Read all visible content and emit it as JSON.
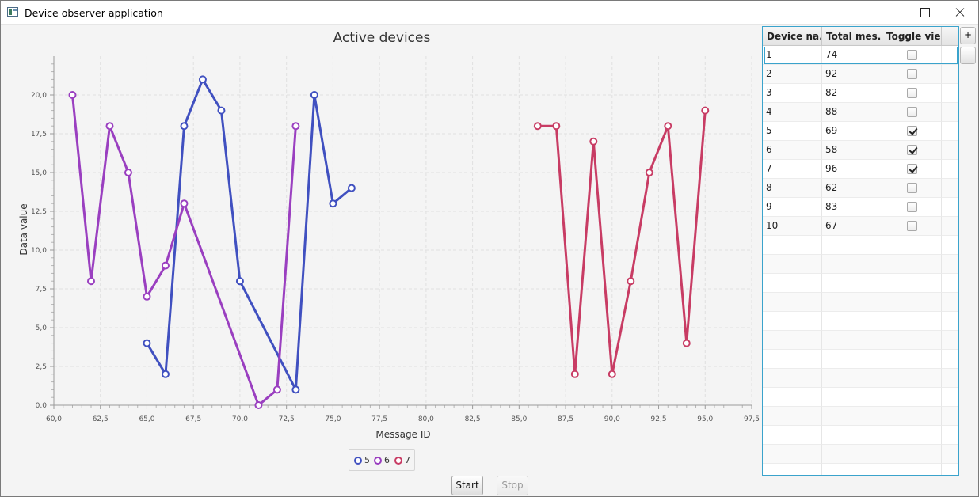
{
  "window": {
    "title": "Device observer application"
  },
  "chart_data": {
    "type": "line",
    "title": "Active devices",
    "xlabel": "Message ID",
    "ylabel": "Data value",
    "xlim": [
      60,
      97.5
    ],
    "ylim": [
      0,
      22.5
    ],
    "xticks": [
      "60,0",
      "62,5",
      "65,0",
      "67,5",
      "70,0",
      "72,5",
      "75,0",
      "77,5",
      "80,0",
      "82,5",
      "85,0",
      "87,5",
      "90,0",
      "92,5",
      "95,0",
      "97,5"
    ],
    "yticks": [
      "0,0",
      "2,5",
      "5,0",
      "7,5",
      "10,0",
      "12,5",
      "15,0",
      "17,5",
      "20,0"
    ],
    "grid": true,
    "legend_position": "bottom",
    "series": [
      {
        "name": "5",
        "color": "#4050c0",
        "x": [
          65,
          66,
          67,
          68,
          69,
          70,
          73,
          74,
          75,
          76
        ],
        "y": [
          4,
          2,
          18,
          21,
          19,
          8,
          1,
          20,
          13,
          14
        ]
      },
      {
        "name": "6",
        "color": "#9a3fc0",
        "x": [
          61,
          62,
          63,
          64,
          65,
          66,
          67,
          71,
          72,
          73
        ],
        "y": [
          20,
          8,
          18,
          15,
          7,
          9,
          13,
          0,
          1,
          18
        ]
      },
      {
        "name": "7",
        "color": "#c83c64",
        "x": [
          86,
          87,
          88,
          89,
          90,
          91,
          92,
          93,
          94,
          95
        ],
        "y": [
          18,
          18,
          2,
          17,
          2,
          8,
          15,
          18,
          4,
          19
        ]
      }
    ]
  },
  "controls": {
    "start_label": "Start",
    "stop_label": "Stop",
    "add_label": "+",
    "remove_label": "-"
  },
  "table": {
    "headers": [
      "Device na...",
      "Total mes...",
      "Toggle view"
    ],
    "rows": [
      {
        "device": "1",
        "total": "74",
        "checked": false
      },
      {
        "device": "2",
        "total": "92",
        "checked": false
      },
      {
        "device": "3",
        "total": "82",
        "checked": false
      },
      {
        "device": "4",
        "total": "88",
        "checked": false
      },
      {
        "device": "5",
        "total": "69",
        "checked": true
      },
      {
        "device": "6",
        "total": "58",
        "checked": true
      },
      {
        "device": "7",
        "total": "96",
        "checked": true
      },
      {
        "device": "8",
        "total": "62",
        "checked": false
      },
      {
        "device": "9",
        "total": "83",
        "checked": false
      },
      {
        "device": "10",
        "total": "67",
        "checked": false
      }
    ]
  }
}
